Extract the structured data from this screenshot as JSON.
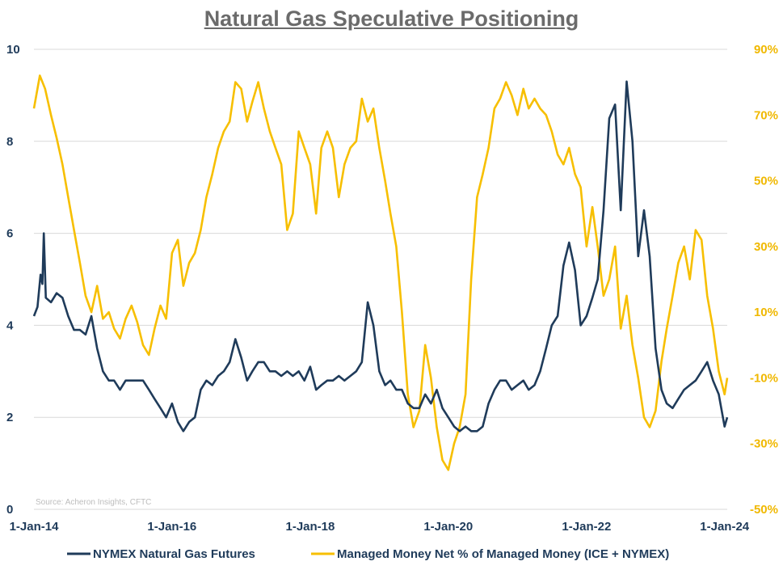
{
  "chart_data": {
    "type": "line",
    "title": "Natural Gas Speculative Positioning",
    "source": "Source: Acheron Insights, CFTC",
    "x_ticks": [
      "1-Jan-14",
      "1-Jan-16",
      "1-Jan-18",
      "1-Jan-20",
      "1-Jan-22",
      "1-Jan-24"
    ],
    "xlim": [
      "2014-01-01",
      "2024-01-15"
    ],
    "y_left": {
      "ylim": [
        0,
        10
      ],
      "ticks": [
        "0",
        "2",
        "4",
        "6",
        "8",
        "10"
      ]
    },
    "y_right": {
      "ylim": [
        -50,
        90
      ],
      "ticks": [
        "-50%",
        "-30%",
        "-10%",
        "10%",
        "30%",
        "50%",
        "70%",
        "90%"
      ]
    },
    "grid": "horizontal",
    "legend_position": "bottom",
    "colors": {
      "nymex": "#1f3b5a",
      "managed": "#f7bf00"
    },
    "series": [
      {
        "name": "NYMEX Natural Gas Futures",
        "axis": "left",
        "points": [
          [
            "2014-01-01",
            4.2
          ],
          [
            "2014-01-20",
            4.4
          ],
          [
            "2014-02-05",
            5.1
          ],
          [
            "2014-02-15",
            4.9
          ],
          [
            "2014-02-22",
            6.0
          ],
          [
            "2014-03-05",
            4.6
          ],
          [
            "2014-04-01",
            4.5
          ],
          [
            "2014-05-01",
            4.7
          ],
          [
            "2014-06-01",
            4.6
          ],
          [
            "2014-07-01",
            4.2
          ],
          [
            "2014-08-01",
            3.9
          ],
          [
            "2014-09-01",
            3.9
          ],
          [
            "2014-10-01",
            3.8
          ],
          [
            "2014-11-01",
            4.2
          ],
          [
            "2014-12-01",
            3.5
          ],
          [
            "2015-01-01",
            3.0
          ],
          [
            "2015-02-01",
            2.8
          ],
          [
            "2015-03-01",
            2.8
          ],
          [
            "2015-04-01",
            2.6
          ],
          [
            "2015-05-01",
            2.8
          ],
          [
            "2015-06-01",
            2.8
          ],
          [
            "2015-07-01",
            2.8
          ],
          [
            "2015-08-01",
            2.8
          ],
          [
            "2015-09-01",
            2.6
          ],
          [
            "2015-10-01",
            2.4
          ],
          [
            "2015-11-01",
            2.2
          ],
          [
            "2015-12-01",
            2.0
          ],
          [
            "2016-01-01",
            2.3
          ],
          [
            "2016-02-01",
            1.9
          ],
          [
            "2016-03-01",
            1.7
          ],
          [
            "2016-04-01",
            1.9
          ],
          [
            "2016-05-01",
            2.0
          ],
          [
            "2016-06-01",
            2.6
          ],
          [
            "2016-07-01",
            2.8
          ],
          [
            "2016-08-01",
            2.7
          ],
          [
            "2016-09-01",
            2.9
          ],
          [
            "2016-10-01",
            3.0
          ],
          [
            "2016-11-01",
            3.2
          ],
          [
            "2016-12-01",
            3.7
          ],
          [
            "2017-01-01",
            3.3
          ],
          [
            "2017-02-01",
            2.8
          ],
          [
            "2017-03-01",
            3.0
          ],
          [
            "2017-04-01",
            3.2
          ],
          [
            "2017-05-01",
            3.2
          ],
          [
            "2017-06-01",
            3.0
          ],
          [
            "2017-07-01",
            3.0
          ],
          [
            "2017-08-01",
            2.9
          ],
          [
            "2017-09-01",
            3.0
          ],
          [
            "2017-10-01",
            2.9
          ],
          [
            "2017-11-01",
            3.0
          ],
          [
            "2017-12-01",
            2.8
          ],
          [
            "2018-01-01",
            3.1
          ],
          [
            "2018-02-01",
            2.6
          ],
          [
            "2018-03-01",
            2.7
          ],
          [
            "2018-04-01",
            2.8
          ],
          [
            "2018-05-01",
            2.8
          ],
          [
            "2018-06-01",
            2.9
          ],
          [
            "2018-07-01",
            2.8
          ],
          [
            "2018-08-01",
            2.9
          ],
          [
            "2018-09-01",
            3.0
          ],
          [
            "2018-10-01",
            3.2
          ],
          [
            "2018-11-01",
            4.5
          ],
          [
            "2018-12-01",
            4.0
          ],
          [
            "2019-01-01",
            3.0
          ],
          [
            "2019-02-01",
            2.7
          ],
          [
            "2019-03-01",
            2.8
          ],
          [
            "2019-04-01",
            2.6
          ],
          [
            "2019-05-01",
            2.6
          ],
          [
            "2019-06-01",
            2.3
          ],
          [
            "2019-07-01",
            2.2
          ],
          [
            "2019-08-01",
            2.2
          ],
          [
            "2019-09-01",
            2.5
          ],
          [
            "2019-10-01",
            2.3
          ],
          [
            "2019-11-01",
            2.6
          ],
          [
            "2019-12-01",
            2.2
          ],
          [
            "2020-01-01",
            2.0
          ],
          [
            "2020-02-01",
            1.8
          ],
          [
            "2020-03-01",
            1.7
          ],
          [
            "2020-04-01",
            1.8
          ],
          [
            "2020-05-01",
            1.7
          ],
          [
            "2020-06-01",
            1.7
          ],
          [
            "2020-07-01",
            1.8
          ],
          [
            "2020-08-01",
            2.3
          ],
          [
            "2020-09-01",
            2.6
          ],
          [
            "2020-10-01",
            2.8
          ],
          [
            "2020-11-01",
            2.8
          ],
          [
            "2020-12-01",
            2.6
          ],
          [
            "2021-01-01",
            2.7
          ],
          [
            "2021-02-01",
            2.8
          ],
          [
            "2021-03-01",
            2.6
          ],
          [
            "2021-04-01",
            2.7
          ],
          [
            "2021-05-01",
            3.0
          ],
          [
            "2021-06-01",
            3.5
          ],
          [
            "2021-07-01",
            4.0
          ],
          [
            "2021-08-01",
            4.2
          ],
          [
            "2021-09-01",
            5.3
          ],
          [
            "2021-10-01",
            5.8
          ],
          [
            "2021-11-01",
            5.2
          ],
          [
            "2021-12-01",
            4.0
          ],
          [
            "2022-01-01",
            4.2
          ],
          [
            "2022-02-01",
            4.6
          ],
          [
            "2022-03-01",
            5.0
          ],
          [
            "2022-04-01",
            6.5
          ],
          [
            "2022-05-01",
            8.5
          ],
          [
            "2022-06-01",
            8.8
          ],
          [
            "2022-07-01",
            6.5
          ],
          [
            "2022-08-01",
            9.3
          ],
          [
            "2022-09-01",
            8.0
          ],
          [
            "2022-10-01",
            5.5
          ],
          [
            "2022-11-01",
            6.5
          ],
          [
            "2022-12-01",
            5.5
          ],
          [
            "2023-01-01",
            3.5
          ],
          [
            "2023-02-01",
            2.6
          ],
          [
            "2023-03-01",
            2.3
          ],
          [
            "2023-04-01",
            2.2
          ],
          [
            "2023-05-01",
            2.4
          ],
          [
            "2023-06-01",
            2.6
          ],
          [
            "2023-07-01",
            2.7
          ],
          [
            "2023-08-01",
            2.8
          ],
          [
            "2023-09-01",
            3.0
          ],
          [
            "2023-10-01",
            3.2
          ],
          [
            "2023-11-01",
            2.8
          ],
          [
            "2023-12-01",
            2.5
          ],
          [
            "2024-01-01",
            1.8
          ],
          [
            "2024-01-15",
            2.0
          ]
        ]
      },
      {
        "name": "Managed Money Net % of Managed Money (ICE + NYMEX)",
        "axis": "right",
        "points": [
          [
            "2014-01-01",
            72
          ],
          [
            "2014-02-01",
            82
          ],
          [
            "2014-03-01",
            78
          ],
          [
            "2014-04-01",
            70
          ],
          [
            "2014-05-01",
            63
          ],
          [
            "2014-06-01",
            55
          ],
          [
            "2014-07-01",
            45
          ],
          [
            "2014-08-01",
            35
          ],
          [
            "2014-09-01",
            25
          ],
          [
            "2014-10-01",
            15
          ],
          [
            "2014-11-01",
            10
          ],
          [
            "2014-12-01",
            18
          ],
          [
            "2015-01-01",
            8
          ],
          [
            "2015-02-01",
            10
          ],
          [
            "2015-03-01",
            5
          ],
          [
            "2015-04-01",
            2
          ],
          [
            "2015-05-01",
            8
          ],
          [
            "2015-06-01",
            12
          ],
          [
            "2015-07-01",
            7
          ],
          [
            "2015-08-01",
            0
          ],
          [
            "2015-09-01",
            -3
          ],
          [
            "2015-10-01",
            5
          ],
          [
            "2015-11-01",
            12
          ],
          [
            "2015-12-01",
            8
          ],
          [
            "2016-01-01",
            28
          ],
          [
            "2016-02-01",
            32
          ],
          [
            "2016-03-01",
            18
          ],
          [
            "2016-04-01",
            25
          ],
          [
            "2016-05-01",
            28
          ],
          [
            "2016-06-01",
            35
          ],
          [
            "2016-07-01",
            45
          ],
          [
            "2016-08-01",
            52
          ],
          [
            "2016-09-01",
            60
          ],
          [
            "2016-10-01",
            65
          ],
          [
            "2016-11-01",
            68
          ],
          [
            "2016-12-01",
            80
          ],
          [
            "2017-01-01",
            78
          ],
          [
            "2017-02-01",
            68
          ],
          [
            "2017-03-01",
            74
          ],
          [
            "2017-04-01",
            80
          ],
          [
            "2017-05-01",
            72
          ],
          [
            "2017-06-01",
            65
          ],
          [
            "2017-07-01",
            60
          ],
          [
            "2017-08-01",
            55
          ],
          [
            "2017-09-01",
            35
          ],
          [
            "2017-10-01",
            40
          ],
          [
            "2017-11-01",
            65
          ],
          [
            "2017-12-01",
            60
          ],
          [
            "2018-01-01",
            55
          ],
          [
            "2018-02-01",
            40
          ],
          [
            "2018-03-01",
            60
          ],
          [
            "2018-04-01",
            65
          ],
          [
            "2018-05-01",
            60
          ],
          [
            "2018-06-01",
            45
          ],
          [
            "2018-07-01",
            55
          ],
          [
            "2018-08-01",
            60
          ],
          [
            "2018-09-01",
            62
          ],
          [
            "2018-10-01",
            75
          ],
          [
            "2018-11-01",
            68
          ],
          [
            "2018-12-01",
            72
          ],
          [
            "2019-01-01",
            60
          ],
          [
            "2019-02-01",
            50
          ],
          [
            "2019-03-01",
            40
          ],
          [
            "2019-04-01",
            30
          ],
          [
            "2019-05-01",
            10
          ],
          [
            "2019-06-01",
            -15
          ],
          [
            "2019-07-01",
            -25
          ],
          [
            "2019-08-01",
            -20
          ],
          [
            "2019-09-01",
            0
          ],
          [
            "2019-10-01",
            -10
          ],
          [
            "2019-11-01",
            -25
          ],
          [
            "2019-12-01",
            -35
          ],
          [
            "2020-01-01",
            -38
          ],
          [
            "2020-02-01",
            -30
          ],
          [
            "2020-03-01",
            -25
          ],
          [
            "2020-04-01",
            -15
          ],
          [
            "2020-05-01",
            20
          ],
          [
            "2020-06-01",
            45
          ],
          [
            "2020-07-01",
            52
          ],
          [
            "2020-08-01",
            60
          ],
          [
            "2020-09-01",
            72
          ],
          [
            "2020-10-01",
            75
          ],
          [
            "2020-11-01",
            80
          ],
          [
            "2020-12-01",
            76
          ],
          [
            "2021-01-01",
            70
          ],
          [
            "2021-02-01",
            78
          ],
          [
            "2021-03-01",
            72
          ],
          [
            "2021-04-01",
            75
          ],
          [
            "2021-05-01",
            72
          ],
          [
            "2021-06-01",
            70
          ],
          [
            "2021-07-01",
            65
          ],
          [
            "2021-08-01",
            58
          ],
          [
            "2021-09-01",
            55
          ],
          [
            "2021-10-01",
            60
          ],
          [
            "2021-11-01",
            52
          ],
          [
            "2021-12-01",
            48
          ],
          [
            "2022-01-01",
            30
          ],
          [
            "2022-02-01",
            42
          ],
          [
            "2022-03-01",
            30
          ],
          [
            "2022-04-01",
            15
          ],
          [
            "2022-05-01",
            20
          ],
          [
            "2022-06-01",
            30
          ],
          [
            "2022-07-01",
            5
          ],
          [
            "2022-08-01",
            15
          ],
          [
            "2022-09-01",
            0
          ],
          [
            "2022-10-01",
            -10
          ],
          [
            "2022-11-01",
            -22
          ],
          [
            "2022-12-01",
            -25
          ],
          [
            "2023-01-01",
            -20
          ],
          [
            "2023-02-01",
            -5
          ],
          [
            "2023-03-01",
            5
          ],
          [
            "2023-04-01",
            15
          ],
          [
            "2023-05-01",
            25
          ],
          [
            "2023-06-01",
            30
          ],
          [
            "2023-07-01",
            20
          ],
          [
            "2023-08-01",
            35
          ],
          [
            "2023-09-01",
            32
          ],
          [
            "2023-10-01",
            15
          ],
          [
            "2023-11-01",
            5
          ],
          [
            "2023-12-01",
            -8
          ],
          [
            "2024-01-01",
            -15
          ],
          [
            "2024-01-15",
            -10
          ]
        ]
      }
    ]
  }
}
